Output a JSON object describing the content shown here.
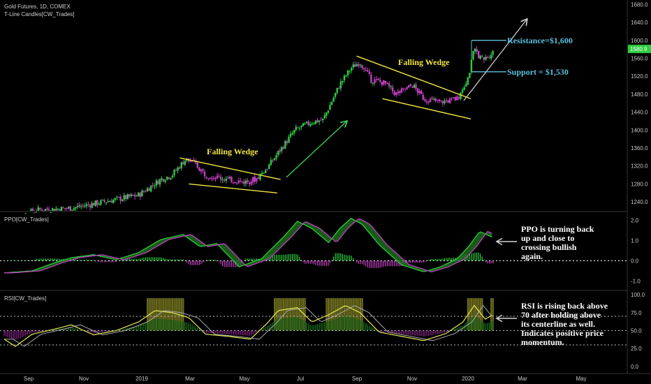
{
  "header": {
    "symbol": "Gold Futures, 1D, COMEX",
    "indicator": "T-Line Candles[CW_Trades]",
    "ppo_label": "PPO[CW_Trades]",
    "rsi_label": "RSI[CW_Trades]"
  },
  "colors": {
    "background": "#000000",
    "bull": "#2ecc40",
    "bear": "#c040c0",
    "wedge": "#f2e640",
    "level": "#5bc0de",
    "arrow_green": "#39d353",
    "arrow_white": "#cccccc",
    "price_tag": "#2ecc40"
  },
  "annotations": {
    "wedge_1": "Falling Wedge",
    "wedge_2": "Falling Wedge",
    "resistance": "Resistance=$1,600",
    "support": "Support = $1,530",
    "ppo_note": [
      "PPO is turning back",
      "up and close to",
      "crossing bullish",
      "again."
    ],
    "rsi_note": [
      "RSI is rising back above",
      "70 after holding above",
      "its centerline as well.",
      "Indicates positive price",
      "momentum."
    ]
  },
  "last_price": "1580.9",
  "chart_data": [
    {
      "type": "candlestick",
      "title": "Gold Futures, 1D, COMEX",
      "x_ticks": [
        "Sep",
        "Nov",
        "2019",
        "Mar",
        "May",
        "Jul",
        "Sep",
        "Nov",
        "2020",
        "Mar",
        "May"
      ],
      "y_ticks": [
        1240,
        1280,
        1320,
        1360,
        1400,
        1440,
        1480,
        1520,
        1560,
        1600,
        1640,
        1680
      ],
      "ylim": [
        1220,
        1690
      ],
      "path_points": [
        {
          "t": 0,
          "p": 1198
        },
        {
          "t": 30,
          "p": 1222
        },
        {
          "t": 60,
          "p": 1226
        },
        {
          "t": 95,
          "p": 1243
        },
        {
          "t": 120,
          "p": 1255
        },
        {
          "t": 140,
          "p": 1290
        },
        {
          "t": 150,
          "p": 1300
        },
        {
          "t": 162,
          "p": 1335
        },
        {
          "t": 170,
          "p": 1326
        },
        {
          "t": 180,
          "p": 1300
        },
        {
          "t": 200,
          "p": 1290
        },
        {
          "t": 215,
          "p": 1284
        },
        {
          "t": 225,
          "p": 1291
        },
        {
          "t": 235,
          "p": 1315
        },
        {
          "t": 245,
          "p": 1350
        },
        {
          "t": 260,
          "p": 1400
        },
        {
          "t": 275,
          "p": 1418
        },
        {
          "t": 285,
          "p": 1423
        },
        {
          "t": 300,
          "p": 1502
        },
        {
          "t": 310,
          "p": 1538
        },
        {
          "t": 318,
          "p": 1552
        },
        {
          "t": 328,
          "p": 1512
        },
        {
          "t": 340,
          "p": 1505
        },
        {
          "t": 350,
          "p": 1480
        },
        {
          "t": 365,
          "p": 1500
        },
        {
          "t": 375,
          "p": 1470
        },
        {
          "t": 390,
          "p": 1462
        },
        {
          "t": 405,
          "p": 1470
        },
        {
          "t": 415,
          "p": 1520
        },
        {
          "t": 420,
          "p": 1580
        },
        {
          "t": 428,
          "p": 1555
        },
        {
          "t": 437,
          "p": 1575
        }
      ],
      "wedge_1": {
        "upper": [
          [
            1338,
            157
          ],
          [
            1290,
            247
          ]
        ],
        "lower": [
          [
            1280,
            165
          ],
          [
            1260,
            244
          ]
        ]
      },
      "wedge_2": {
        "upper": [
          [
            1565,
            315
          ],
          [
            1470,
            417
          ]
        ],
        "lower": [
          [
            1470,
            338
          ],
          [
            1425,
            417
          ]
        ]
      },
      "resistance": 1600,
      "support": 1530,
      "last": 1580.9
    },
    {
      "type": "area",
      "title": "PPO[CW_Trades]",
      "y_ticks": [
        2.0,
        1.0,
        0.0,
        -1.0
      ],
      "ylim": [
        -1.4,
        2.4
      ],
      "zero_line": 0.0,
      "path_points": [
        {
          "t": 0,
          "v": -0.6
        },
        {
          "t": 25,
          "v": -0.5
        },
        {
          "t": 45,
          "v": -0.1
        },
        {
          "t": 60,
          "v": 0.15
        },
        {
          "t": 80,
          "v": 0.3
        },
        {
          "t": 100,
          "v": 0.05
        },
        {
          "t": 120,
          "v": 0.4
        },
        {
          "t": 140,
          "v": 1.05
        },
        {
          "t": 160,
          "v": 1.3
        },
        {
          "t": 175,
          "v": 0.7
        },
        {
          "t": 190,
          "v": 0.85
        },
        {
          "t": 210,
          "v": -0.3
        },
        {
          "t": 230,
          "v": 0.1
        },
        {
          "t": 250,
          "v": 1.2
        },
        {
          "t": 262,
          "v": 1.95
        },
        {
          "t": 275,
          "v": 1.6
        },
        {
          "t": 290,
          "v": 0.9
        },
        {
          "t": 300,
          "v": 1.6
        },
        {
          "t": 310,
          "v": 2.1
        },
        {
          "t": 320,
          "v": 1.8
        },
        {
          "t": 335,
          "v": 0.8
        },
        {
          "t": 355,
          "v": -0.2
        },
        {
          "t": 375,
          "v": -0.55
        },
        {
          "t": 390,
          "v": -0.3
        },
        {
          "t": 405,
          "v": 0.1
        },
        {
          "t": 415,
          "v": 0.7
        },
        {
          "t": 425,
          "v": 1.45
        },
        {
          "t": 437,
          "v": 1.15
        }
      ]
    },
    {
      "type": "line",
      "title": "RSI[CW_Trades]",
      "y_ticks": [
        100.0,
        75.0,
        50.0,
        25.0,
        0.0
      ],
      "ylim": [
        -5,
        105
      ],
      "levels": [
        70,
        50,
        30
      ],
      "path_points": [
        {
          "t": 0,
          "v": 38
        },
        {
          "t": 10,
          "v": 28
        },
        {
          "t": 25,
          "v": 45
        },
        {
          "t": 45,
          "v": 52
        },
        {
          "t": 60,
          "v": 58
        },
        {
          "t": 80,
          "v": 44
        },
        {
          "t": 100,
          "v": 50
        },
        {
          "t": 120,
          "v": 62
        },
        {
          "t": 135,
          "v": 78
        },
        {
          "t": 150,
          "v": 75
        },
        {
          "t": 165,
          "v": 68
        },
        {
          "t": 180,
          "v": 45
        },
        {
          "t": 200,
          "v": 42
        },
        {
          "t": 220,
          "v": 38
        },
        {
          "t": 235,
          "v": 60
        },
        {
          "t": 245,
          "v": 78
        },
        {
          "t": 262,
          "v": 82
        },
        {
          "t": 275,
          "v": 62
        },
        {
          "t": 290,
          "v": 72
        },
        {
          "t": 305,
          "v": 85
        },
        {
          "t": 318,
          "v": 75
        },
        {
          "t": 335,
          "v": 48
        },
        {
          "t": 355,
          "v": 42
        },
        {
          "t": 375,
          "v": 36
        },
        {
          "t": 395,
          "v": 46
        },
        {
          "t": 410,
          "v": 62
        },
        {
          "t": 420,
          "v": 85
        },
        {
          "t": 430,
          "v": 66
        },
        {
          "t": 437,
          "v": 72
        }
      ]
    }
  ]
}
